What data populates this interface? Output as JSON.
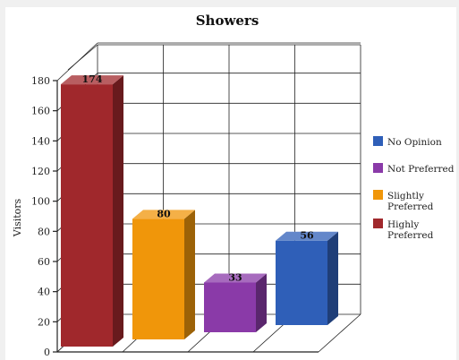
{
  "chart_data": {
    "type": "bar",
    "title": "Showers",
    "ylabel": "Visitors",
    "xlabel": "",
    "ylim": [
      0,
      180
    ],
    "yticks": [
      0,
      20,
      40,
      60,
      80,
      100,
      120,
      140,
      160,
      180
    ],
    "categories": [
      "Highly Preferred",
      "Slightly Preferred",
      "Not Preferred",
      "No Opinion"
    ],
    "values": [
      174,
      80,
      33,
      56
    ],
    "value_labels": [
      "174",
      "80",
      "33",
      "56"
    ],
    "colors": [
      "#a0282c",
      "#f0960a",
      "#8a3aa8",
      "#2f5fb8"
    ],
    "legend_position": "right",
    "legend": [
      {
        "label_lines": [
          "No Opinion"
        ],
        "color": "#2f5fb8"
      },
      {
        "label_lines": [
          "Not Preferred"
        ],
        "color": "#8a3aa8"
      },
      {
        "label_lines": [
          "Slightly",
          "Preferred"
        ],
        "color": "#f0960a"
      },
      {
        "label_lines": [
          "Highly",
          "Preferred"
        ],
        "color": "#a0282c"
      }
    ],
    "grid": true,
    "style": "3d"
  }
}
